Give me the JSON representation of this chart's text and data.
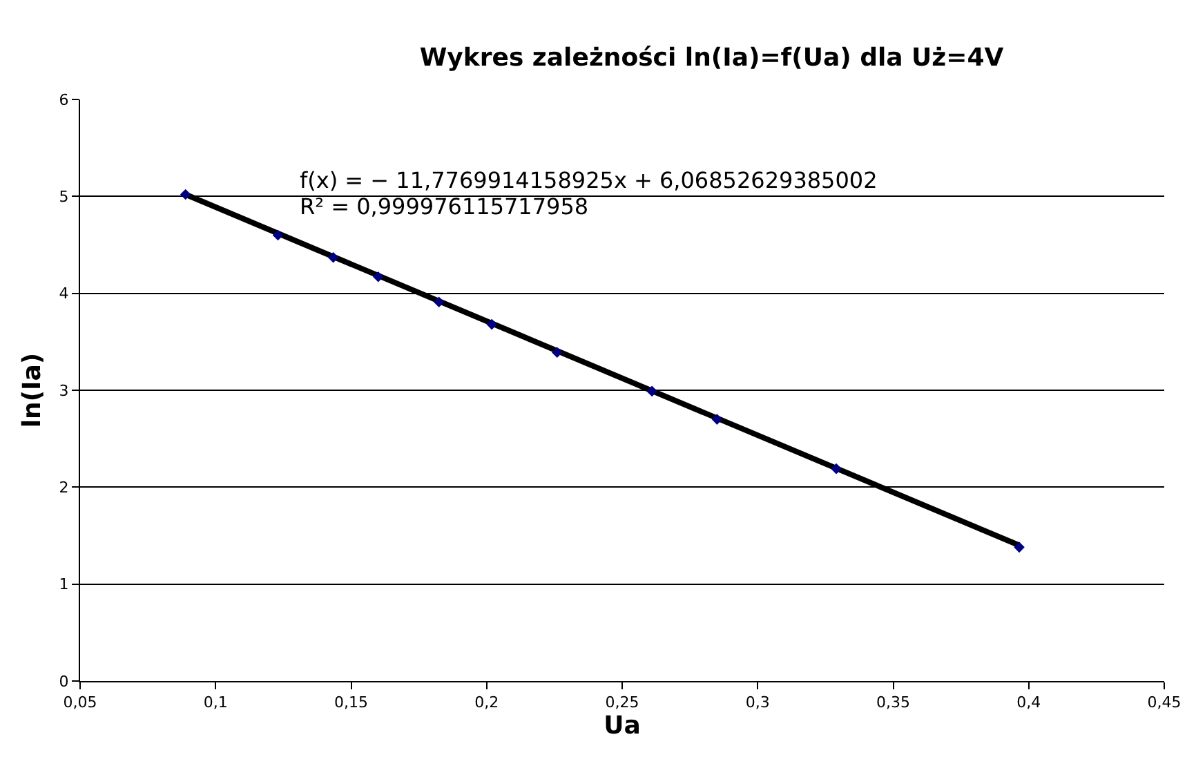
{
  "chart_data": {
    "type": "scatter",
    "title": "Wykres zależności ln(Ia)=f(Ua) dla Uż=4V",
    "xlabel": "Ua",
    "ylabel": "ln(Ia)",
    "series": [
      {
        "color": "#000080",
        "marker": "diamond",
        "x": [
          0.0889,
          0.123,
          0.1434,
          0.16,
          0.1824,
          0.2019,
          0.226,
          0.261,
          0.285,
          0.329,
          0.3965
        ],
        "values": [
          5.02,
          4.6,
          4.37,
          4.17,
          3.91,
          3.68,
          3.39,
          2.99,
          2.7,
          2.19,
          1.38
        ]
      },
      {
        "type": "line",
        "color": "#000000",
        "marker": "none",
        "x": [
          0.0889,
          0.3965
        ],
        "values": [
          5.02,
          1.4
        ]
      }
    ],
    "annotations": [
      "f(x) = − 11,7769914158925x + 6,06852629385002",
      "R² = 0,999976115717958"
    ],
    "xlim": [
      0.05,
      0.45
    ],
    "xticks": [
      {
        "value": 0.05,
        "label": "0,05"
      },
      {
        "value": 0.1,
        "label": "0,1"
      },
      {
        "value": 0.15,
        "label": "0,15"
      },
      {
        "value": 0.2,
        "label": "0,2"
      },
      {
        "value": 0.25,
        "label": "0,25"
      },
      {
        "value": 0.3,
        "label": "0,3"
      },
      {
        "value": 0.35,
        "label": "0,35"
      },
      {
        "value": 0.4,
        "label": "0,4"
      },
      {
        "value": 0.45,
        "label": "0,45"
      }
    ],
    "ylim": [
      0,
      6
    ],
    "yticks": [
      0,
      1,
      2,
      3,
      4,
      5,
      6
    ],
    "grid": "y"
  }
}
